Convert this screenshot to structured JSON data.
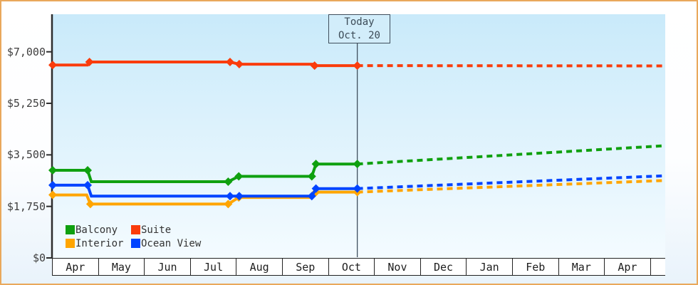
{
  "window": {
    "border_color": "#e9a85c"
  },
  "chart_data": {
    "type": "line",
    "title": "",
    "today": {
      "line1": "Today",
      "line2": "Oct. 20",
      "x_offset": 6.63
    },
    "x_axis": {
      "months": [
        "Apr",
        "May",
        "Jun",
        "Jul",
        "Aug",
        "Sep",
        "Oct",
        "Nov",
        "Dec",
        "Jan",
        "Feb",
        "Mar",
        "Apr",
        ""
      ]
    },
    "y_axis": {
      "ticks": [
        {
          "label": "$0",
          "value": 0
        },
        {
          "label": "$1,750",
          "value": 1750
        },
        {
          "label": "$3,500",
          "value": 3500
        },
        {
          "label": "$5,250",
          "value": 5250
        },
        {
          "label": "$7,000",
          "value": 7000
        }
      ],
      "range": [
        0,
        8300
      ]
    },
    "legend": [
      {
        "label": "Balcony",
        "color": "#0fa00f"
      },
      {
        "label": "Suite",
        "color": "#fa3c0c"
      },
      {
        "label": "Interior",
        "color": "#ffa500"
      },
      {
        "label": "Ocean View",
        "color": "#0044ff"
      }
    ],
    "series": [
      {
        "name": "Interior",
        "color": "#ffa500",
        "points": [
          [
            0,
            2140
          ],
          [
            0.74,
            2140
          ],
          [
            0.82,
            1830
          ],
          [
            3.82,
            1830
          ],
          [
            4.05,
            2055
          ],
          [
            5.64,
            2055
          ],
          [
            5.73,
            2235
          ],
          [
            6.63,
            2235
          ]
        ],
        "marker_indices": [
          0,
          2,
          3,
          4,
          6,
          7
        ],
        "forecast": [
          [
            6.63,
            2235
          ],
          [
            13.33,
            2630
          ]
        ]
      },
      {
        "name": "Ocean View",
        "color": "#0044ff",
        "points": [
          [
            0,
            2470
          ],
          [
            0.76,
            2470
          ],
          [
            0.84,
            2100
          ],
          [
            3.86,
            2100
          ],
          [
            4.06,
            2100
          ],
          [
            5.64,
            2100
          ],
          [
            5.73,
            2355
          ],
          [
            6.63,
            2355
          ]
        ],
        "marker_indices": [
          0,
          1,
          3,
          4,
          5,
          6,
          7
        ],
        "forecast": [
          [
            6.63,
            2355
          ],
          [
            13.33,
            2790
          ]
        ]
      },
      {
        "name": "Balcony",
        "color": "#0fa00f",
        "points": [
          [
            0,
            2975
          ],
          [
            0.76,
            2975
          ],
          [
            0.84,
            2590
          ],
          [
            3.82,
            2590
          ],
          [
            4.05,
            2770
          ],
          [
            5.64,
            2770
          ],
          [
            5.73,
            3190
          ],
          [
            6.63,
            3190
          ]
        ],
        "marker_indices": [
          0,
          1,
          3,
          4,
          5,
          6,
          7
        ],
        "forecast": [
          [
            6.63,
            3190
          ],
          [
            13.33,
            3810
          ]
        ]
      },
      {
        "name": "Suite",
        "color": "#fa3c0c",
        "points": [
          [
            0,
            6550
          ],
          [
            0.76,
            6550
          ],
          [
            0.8,
            6655
          ],
          [
            3.86,
            6655
          ],
          [
            4.06,
            6580
          ],
          [
            5.66,
            6580
          ],
          [
            5.7,
            6530
          ],
          [
            6.63,
            6530
          ]
        ],
        "marker_indices": [
          0,
          2,
          3,
          4,
          6,
          7
        ],
        "forecast": [
          [
            6.63,
            6530
          ],
          [
            13.33,
            6520
          ]
        ]
      }
    ]
  }
}
